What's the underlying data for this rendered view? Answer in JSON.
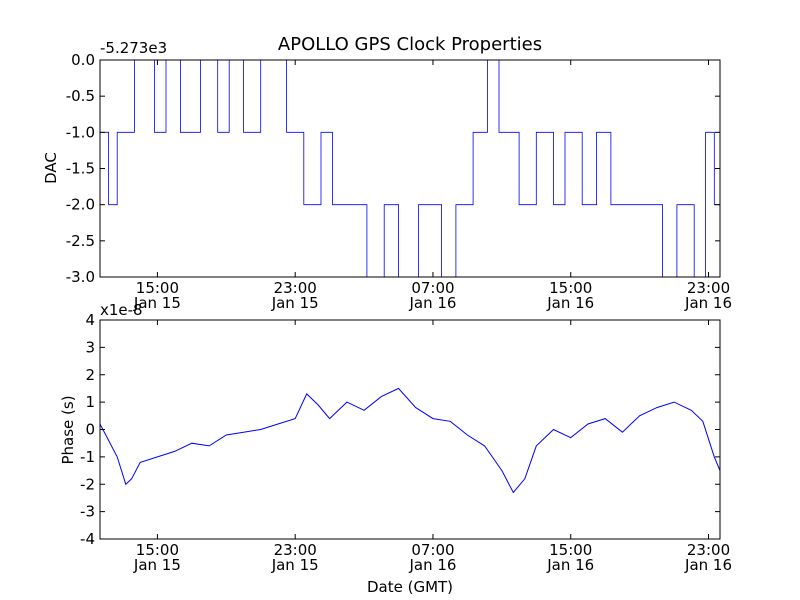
{
  "title": "APOLLO GPS Clock Properties",
  "colors": {
    "line": "#0000ff",
    "axes": "#000000",
    "background": "#ffffff"
  },
  "chart_data": [
    {
      "type": "line",
      "ylabel": "DAC",
      "offset_text": "-5.273e3",
      "ylim": [
        -3.0,
        0.0
      ],
      "y_ticks": [
        0.0,
        -0.5,
        -1.0,
        -1.5,
        -2.0,
        -2.5,
        -3.0
      ],
      "y_tick_labels": [
        "0.0",
        "-0.5",
        "-1.0",
        "-1.5",
        "-2.0",
        "-2.5",
        "-3.0"
      ],
      "x_ticks": [
        {
          "time": "15:00",
          "date": "Jan 15"
        },
        {
          "time": "23:00",
          "date": "Jan 15"
        },
        {
          "time": "07:00",
          "date": "Jan 16"
        },
        {
          "time": "15:00",
          "date": "Jan 16"
        },
        {
          "time": "23:00",
          "date": "Jan 16"
        }
      ],
      "xlim": [
        "Jan 15 11:40",
        "Jan 16 23:40"
      ],
      "series": [
        {
          "interpolation": "step",
          "x": [
            "Jan 15 11:40",
            "Jan 15 12:10",
            "Jan 15 12:40",
            "Jan 15 13:40",
            "Jan 15 14:50",
            "Jan 15 15:30",
            "Jan 15 16:20",
            "Jan 15 17:30",
            "Jan 15 18:30",
            "Jan 15 19:10",
            "Jan 15 20:00",
            "Jan 15 21:00",
            "Jan 15 22:30",
            "Jan 15 23:30",
            "Jan 16 00:30",
            "Jan 16 01:10",
            "Jan 16 02:30",
            "Jan 16 03:10",
            "Jan 16 04:10",
            "Jan 16 05:00",
            "Jan 16 06:10",
            "Jan 16 07:30",
            "Jan 16 08:20",
            "Jan 16 09:20",
            "Jan 16 10:10",
            "Jan 16 10:50",
            "Jan 16 11:30",
            "Jan 16 12:00",
            "Jan 16 13:00",
            "Jan 16 14:00",
            "Jan 16 14:40",
            "Jan 16 15:40",
            "Jan 16 16:30",
            "Jan 16 17:20",
            "Jan 16 18:00",
            "Jan 16 19:10",
            "Jan 16 20:20",
            "Jan 16 21:10",
            "Jan 16 22:10",
            "Jan 16 22:50",
            "Jan 16 23:20",
            "Jan 16 23:40"
          ],
          "y": [
            -1,
            -2,
            -1,
            0,
            -1,
            0,
            -1,
            0,
            -1,
            0,
            -1,
            0,
            -1,
            -2,
            -1,
            -2,
            -2,
            -3,
            -2,
            -3,
            -2,
            -3,
            -2,
            -1,
            0,
            -1,
            -1,
            -2,
            -1,
            -2,
            -1,
            -2,
            -1,
            -2,
            -2,
            -2,
            -3,
            -2,
            -3,
            -1,
            -2,
            -1
          ]
        }
      ]
    },
    {
      "type": "line",
      "ylabel": "Phase (s)",
      "xlabel": "Date (GMT)",
      "offset_text": "x1e-8",
      "ylim": [
        -4,
        4
      ],
      "y_ticks": [
        4,
        3,
        2,
        1,
        0,
        -1,
        -2,
        -3,
        -4
      ],
      "y_tick_labels": [
        "4",
        "3",
        "2",
        "1",
        "0",
        "-1",
        "-2",
        "-3",
        "-4"
      ],
      "x_ticks": [
        {
          "time": "15:00",
          "date": "Jan 15"
        },
        {
          "time": "23:00",
          "date": "Jan 15"
        },
        {
          "time": "07:00",
          "date": "Jan 16"
        },
        {
          "time": "15:00",
          "date": "Jan 16"
        },
        {
          "time": "23:00",
          "date": "Jan 16"
        }
      ],
      "xlim": [
        "Jan 15 11:40",
        "Jan 16 23:40"
      ],
      "series": [
        {
          "x": [
            "Jan 15 11:40",
            "Jan 15 12:10",
            "Jan 15 12:40",
            "Jan 15 13:10",
            "Jan 15 13:30",
            "Jan 15 14:00",
            "Jan 15 15:00",
            "Jan 15 16:00",
            "Jan 15 17:00",
            "Jan 15 18:00",
            "Jan 15 19:00",
            "Jan 15 20:00",
            "Jan 15 21:00",
            "Jan 15 22:00",
            "Jan 15 23:00",
            "Jan 15 23:40",
            "Jan 16 00:20",
            "Jan 16 01:00",
            "Jan 16 02:00",
            "Jan 16 03:00",
            "Jan 16 04:00",
            "Jan 16 05:00",
            "Jan 16 06:00",
            "Jan 16 07:00",
            "Jan 16 08:00",
            "Jan 16 09:00",
            "Jan 16 10:00",
            "Jan 16 11:00",
            "Jan 16 11:40",
            "Jan 16 12:20",
            "Jan 16 13:00",
            "Jan 16 14:00",
            "Jan 16 15:00",
            "Jan 16 16:00",
            "Jan 16 17:00",
            "Jan 16 18:00",
            "Jan 16 19:00",
            "Jan 16 20:00",
            "Jan 16 21:00",
            "Jan 16 22:00",
            "Jan 16 22:40",
            "Jan 16 23:20",
            "Jan 16 23:40"
          ],
          "y": [
            0.2,
            -0.4,
            -1.0,
            -2.0,
            -1.8,
            -1.2,
            -1.0,
            -0.8,
            -0.5,
            -0.6,
            -0.2,
            -0.1,
            0.0,
            0.2,
            0.4,
            1.3,
            0.9,
            0.4,
            1.0,
            0.7,
            1.2,
            1.5,
            0.8,
            0.4,
            0.3,
            -0.2,
            -0.6,
            -1.5,
            -2.3,
            -1.8,
            -0.6,
            0.0,
            -0.3,
            0.2,
            0.4,
            -0.1,
            0.5,
            0.8,
            1.0,
            0.7,
            0.3,
            -1.0,
            -1.5
          ]
        }
      ]
    }
  ]
}
